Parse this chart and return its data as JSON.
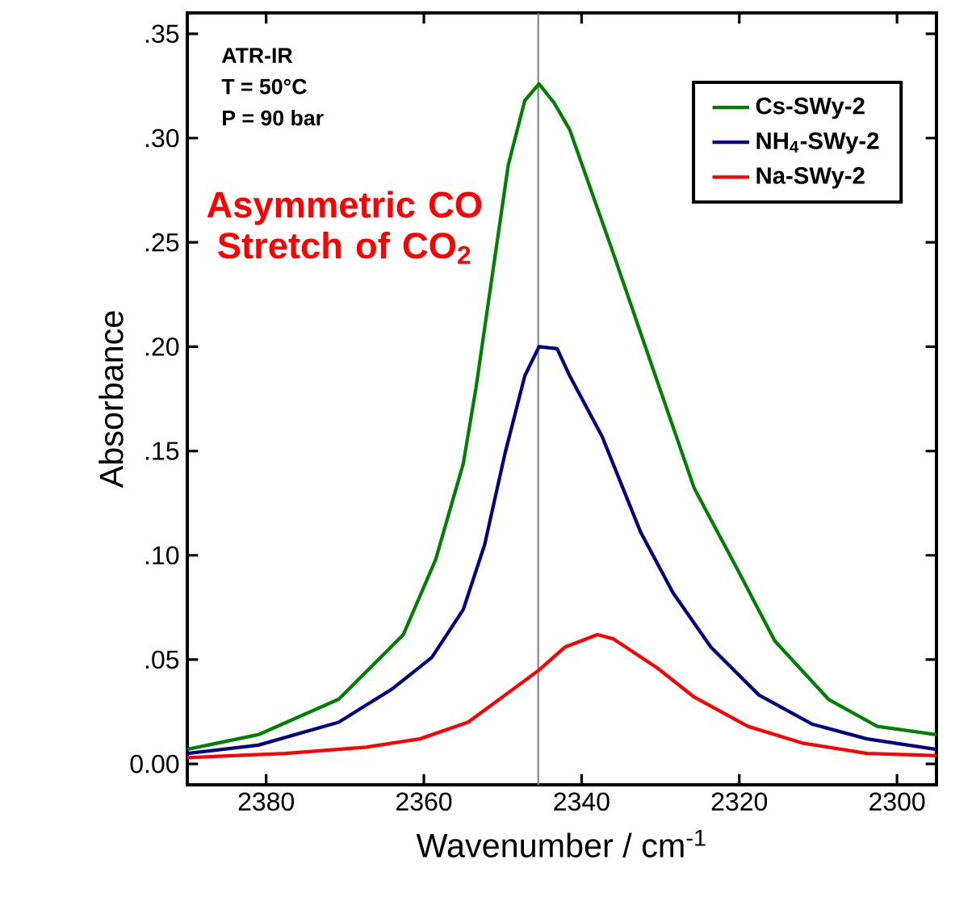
{
  "chart_data": {
    "type": "line",
    "xlabel": "Wavenumber / cm$^{-1}$",
    "ylabel": "Absorbance",
    "annotations": [
      "ATR-IR",
      "T = 50°C",
      "P = 90 bar",
      "Asymmetric CO Stretch of CO$_{2}$"
    ],
    "xlim": [
      2390,
      2295
    ],
    "ylim": [
      -0.01,
      0.36
    ],
    "xticks": [
      2380,
      2360,
      2340,
      2320,
      2300
    ],
    "yticks": [
      {
        "value": 0,
        "label": "0.00"
      },
      {
        "value": 0.05,
        "label": ".05"
      },
      {
        "value": 0.1,
        "label": ".10"
      },
      {
        "value": 0.15,
        "label": ".15"
      },
      {
        "value": 0.2,
        "label": ".20"
      },
      {
        "value": 0.25,
        "label": ".25"
      },
      {
        "value": 0.3,
        "label": ".30"
      },
      {
        "value": 0.35,
        "label": ".35"
      }
    ],
    "grid": false,
    "legend": "top right",
    "marker": "none",
    "line_style": "solid",
    "ref_lines": [
      {
        "axis": "x",
        "value": 2345.5,
        "color": "#808080"
      }
    ],
    "series": [
      {
        "name": "Cs-SWy-2",
        "color": "#008000",
        "x": [
          2390,
          2381,
          2370.8,
          2362.6,
          2358.5,
          2355,
          2353.4,
          2349.3,
          2347.2,
          2345.4,
          2343.5,
          2341.5,
          2336,
          2331,
          2325.7,
          2320.2,
          2315.5,
          2308.7,
          2302.5,
          2295
        ],
        "values": [
          0.007,
          0.014,
          0.031,
          0.062,
          0.098,
          0.144,
          0.18,
          0.287,
          0.318,
          0.326,
          0.317,
          0.304,
          0.245,
          0.19,
          0.132,
          0.093,
          0.059,
          0.031,
          0.018,
          0.014
        ]
      },
      {
        "name": "NH$_{4}$-SWy-2",
        "color": "#000080",
        "x": [
          2390,
          2381,
          2370.8,
          2364,
          2359,
          2355,
          2352.3,
          2349.7,
          2347.2,
          2345.4,
          2343.1,
          2341.5,
          2337.4,
          2332.5,
          2328.4,
          2323.6,
          2317.5,
          2310.7,
          2303.8,
          2295
        ],
        "values": [
          0.005,
          0.009,
          0.02,
          0.036,
          0.051,
          0.074,
          0.105,
          0.149,
          0.186,
          0.2,
          0.199,
          0.186,
          0.157,
          0.111,
          0.082,
          0.056,
          0.033,
          0.019,
          0.012,
          0.007
        ]
      },
      {
        "name": "Na-SWy-2",
        "color": "#ff0000",
        "x": [
          2390,
          2377.5,
          2367.3,
          2360.5,
          2354.4,
          2349.7,
          2345.4,
          2342.1,
          2338,
          2336,
          2330.4,
          2325.7,
          2318.9,
          2312,
          2303.8,
          2295
        ],
        "values": [
          0.003,
          0.005,
          0.008,
          0.012,
          0.02,
          0.033,
          0.045,
          0.056,
          0.062,
          0.06,
          0.046,
          0.032,
          0.018,
          0.01,
          0.005,
          0.004
        ]
      }
    ]
  }
}
